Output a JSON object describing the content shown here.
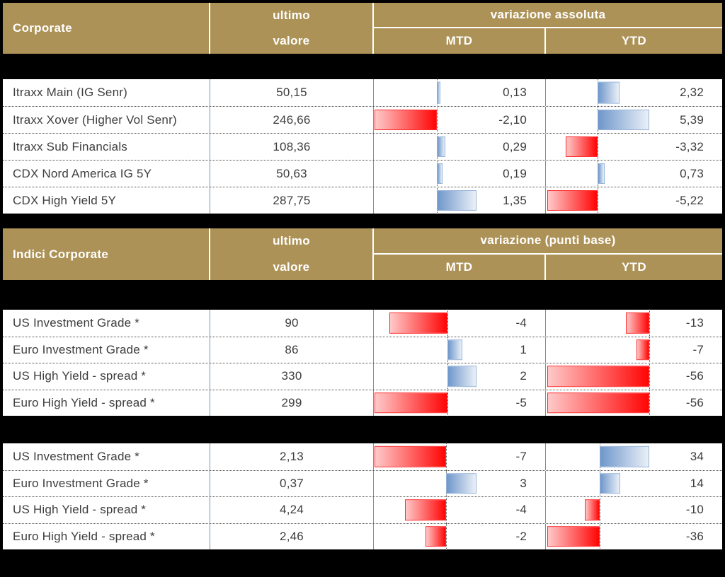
{
  "colors": {
    "page_bg": "#000000",
    "header_bg": "#AD9257",
    "header_text": "#FFFFFF",
    "row_text": "#3D3D3D",
    "column_divider": "#7493A8",
    "row_divider": "#4A4A4A",
    "bar_positive_start": "#6F97CB",
    "bar_positive_end": "#EAF0F8",
    "bar_positive_border": "#95B3D7",
    "bar_negative_start": "#FFC9C9",
    "bar_negative_end": "#FF0505",
    "bar_negative_border": "#FF2A2A"
  },
  "chart_data": [
    {
      "type": "table",
      "title": "Corporate",
      "headers": {
        "value_line1": "ultimo",
        "value_line2": "valore",
        "variation": "variazione assoluta",
        "mtd": "MTD",
        "ytd": "YTD"
      },
      "rows": [
        {
          "name": "Itraxx Main (IG Senr)",
          "value_label": "50,15",
          "mtd": 0.13,
          "mtd_label": "0,13",
          "ytd": 2.32,
          "ytd_label": "2,32"
        },
        {
          "name": "Itraxx Xover (Higher Vol Senr)",
          "value_label": "246,66",
          "mtd": -2.1,
          "mtd_label": "-2,10",
          "ytd": 5.39,
          "ytd_label": "5,39"
        },
        {
          "name": "Itraxx Sub Financials",
          "value_label": "108,36",
          "mtd": 0.29,
          "mtd_label": "0,29",
          "ytd": -3.32,
          "ytd_label": "-3,32"
        },
        {
          "name": "CDX Nord America IG 5Y",
          "value_label": "50,63",
          "mtd": 0.19,
          "mtd_label": "0,19",
          "ytd": 0.73,
          "ytd_label": "0,73"
        },
        {
          "name": "CDX High Yield 5Y",
          "value_label": "287,75",
          "mtd": 1.35,
          "mtd_label": "1,35",
          "ytd": -5.22,
          "ytd_label": "-5,22"
        }
      ]
    },
    {
      "type": "table",
      "title": "Indici Corporate",
      "headers": {
        "value_line1": "ultimo",
        "value_line2": "valore",
        "variation": "variazione (punti base)",
        "mtd": "MTD",
        "ytd": "YTD"
      },
      "rows": [
        {
          "name": "US Investment Grade *",
          "value_label": "90",
          "mtd": -4,
          "mtd_label": "-4",
          "ytd": -13,
          "ytd_label": "-13"
        },
        {
          "name": "Euro Investment Grade *",
          "value_label": "86",
          "mtd": 1,
          "mtd_label": "1",
          "ytd": -7,
          "ytd_label": "-7"
        },
        {
          "name": "US High Yield  - spread *",
          "value_label": "330",
          "mtd": 2,
          "mtd_label": "2",
          "ytd": -56,
          "ytd_label": "-56"
        },
        {
          "name": "Euro High Yield  - spread *",
          "value_label": "299",
          "mtd": -5,
          "mtd_label": "-5",
          "ytd": -56,
          "ytd_label": "-56"
        }
      ]
    },
    {
      "type": "table",
      "title": null,
      "rows": [
        {
          "name": "US Investment Grade *",
          "value_label": "2,13",
          "mtd": -7,
          "mtd_label": "-7",
          "ytd": 34,
          "ytd_label": "34"
        },
        {
          "name": "Euro Investment Grade *",
          "value_label": "0,37",
          "mtd": 3,
          "mtd_label": "3",
          "ytd": 14,
          "ytd_label": "14"
        },
        {
          "name": "US High Yield  - spread *",
          "value_label": "4,24",
          "mtd": -4,
          "mtd_label": "-4",
          "ytd": -10,
          "ytd_label": "-10"
        },
        {
          "name": "Euro High Yield  - spread *",
          "value_label": "2,46",
          "mtd": -2,
          "mtd_label": "-2",
          "ytd": -36,
          "ytd_label": "-36"
        }
      ]
    }
  ]
}
